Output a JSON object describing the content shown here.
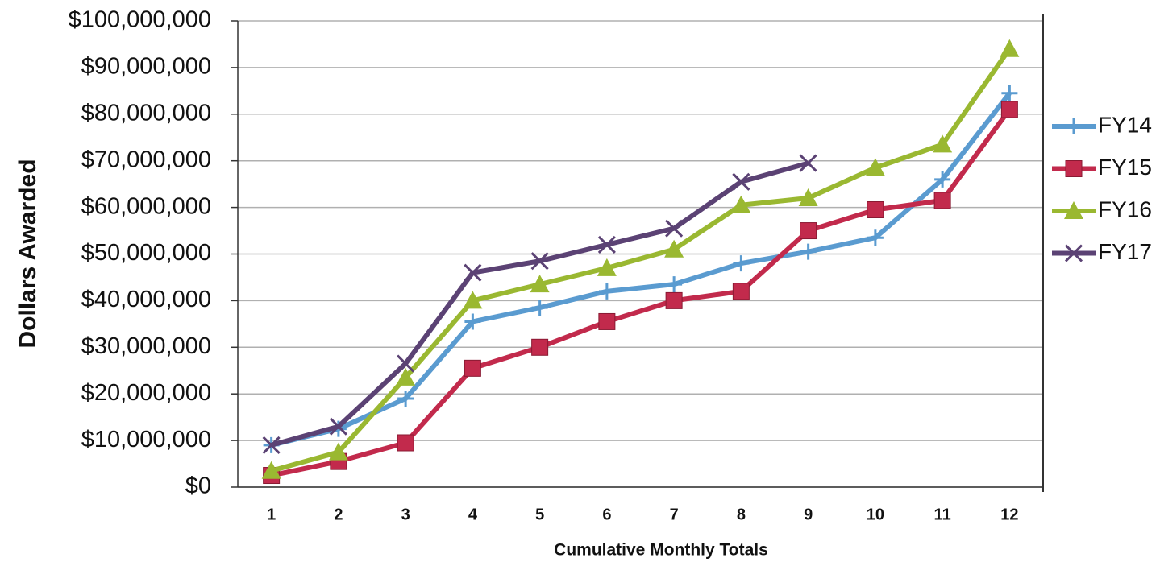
{
  "chart_data": {
    "type": "line",
    "x_label": "Cumulative Monthly Totals",
    "y_label": "Dollars Awarded",
    "categories": [
      "1",
      "2",
      "3",
      "4",
      "5",
      "6",
      "7",
      "8",
      "9",
      "10",
      "11",
      "12"
    ],
    "series": [
      {
        "name": "FY14",
        "color": "#5a9bd0",
        "marker": "plus",
        "values": [
          9000000,
          12500000,
          19000000,
          35500000,
          38500000,
          42000000,
          43500000,
          48000000,
          50500000,
          53500000,
          66000000,
          84500000
        ]
      },
      {
        "name": "FY15",
        "color": "#c22a4c",
        "marker": "square",
        "values": [
          2500000,
          5500000,
          9500000,
          25500000,
          30000000,
          35500000,
          40000000,
          42000000,
          55000000,
          59500000,
          61500000,
          81000000
        ]
      },
      {
        "name": "FY16",
        "color": "#9ab831",
        "marker": "triangle",
        "values": [
          3500000,
          7500000,
          23500000,
          40000000,
          43500000,
          47000000,
          51000000,
          60500000,
          62000000,
          68500000,
          73500000,
          94000000
        ]
      },
      {
        "name": "FY17",
        "color": "#5b4274",
        "marker": "x",
        "values": [
          9000000,
          13000000,
          26500000,
          46000000,
          48500000,
          52000000,
          55500000,
          65500000,
          69500000,
          null,
          null,
          null
        ]
      }
    ],
    "ylim": [
      0,
      100000000
    ],
    "yticks": [
      {
        "value": 0,
        "label": "$0"
      },
      {
        "value": 10000000,
        "label": "$10,000,000"
      },
      {
        "value": 20000000,
        "label": "$20,000,000"
      },
      {
        "value": 30000000,
        "label": "$30,000,000"
      },
      {
        "value": 40000000,
        "label": "$40,000,000"
      },
      {
        "value": 50000000,
        "label": "$50,000,000"
      },
      {
        "value": 60000000,
        "label": "$60,000,000"
      },
      {
        "value": 70000000,
        "label": "$70,000,000"
      },
      {
        "value": 80000000,
        "label": "$80,000,000"
      },
      {
        "value": 90000000,
        "label": "$90,000,000"
      },
      {
        "value": 100000000,
        "label": "$100,000,000"
      }
    ],
    "grid": true,
    "legend": "right"
  }
}
